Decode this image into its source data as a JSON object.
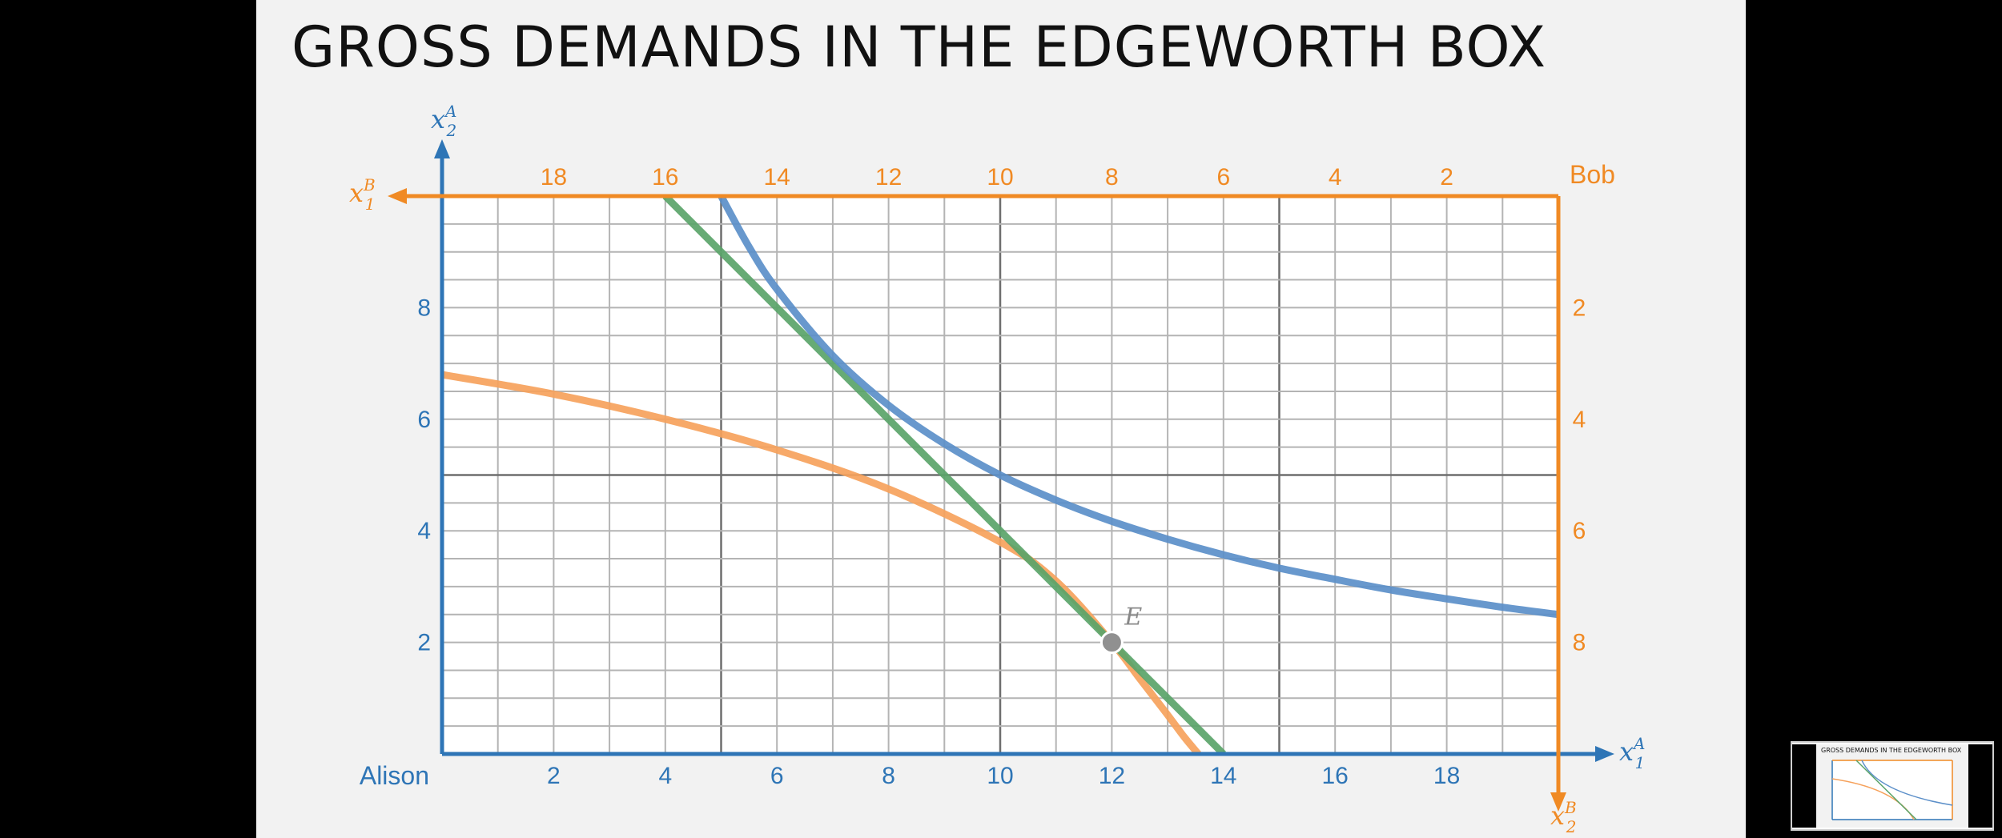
{
  "slide": {
    "title": "GROSS DEMANDS IN THE EDGEWORTH BOX"
  },
  "colors": {
    "alison_axis": "#2e75b6",
    "bob_axis": "#f08a24",
    "indifference_alison": "#5b8fc9",
    "indifference_bob": "#f6a25c",
    "budget_line": "#5aa469",
    "endowment_point": "#909090"
  },
  "chart_data": {
    "type": "line",
    "origins": {
      "alison": "Alison",
      "bob": "Bob"
    },
    "axes": {
      "alison_x": {
        "label_base": "x",
        "label_sub": "1",
        "label_sup": "A",
        "range": [
          0,
          20
        ],
        "ticks": [
          2,
          4,
          6,
          8,
          10,
          12,
          14,
          16,
          18
        ]
      },
      "alison_y": {
        "label_base": "x",
        "label_sub": "2",
        "label_sup": "A",
        "range": [
          0,
          10
        ],
        "ticks": [
          2,
          4,
          6,
          8
        ]
      },
      "bob_x": {
        "label_base": "x",
        "label_sub": "1",
        "label_sup": "B",
        "range": [
          0,
          20
        ],
        "ticks": [
          18,
          16,
          14,
          12,
          10,
          8,
          6,
          4,
          2
        ],
        "direction": "reversed"
      },
      "bob_y": {
        "label_base": "x",
        "label_sub": "2",
        "label_sup": "B",
        "range": [
          0,
          10
        ],
        "ticks": [
          2,
          4,
          6,
          8
        ],
        "direction": "reversed"
      }
    },
    "grid": {
      "minor_step": 1,
      "major_step": 5
    },
    "endowment": {
      "label": "E",
      "x": 12,
      "y": 2
    },
    "series": [
      {
        "key": "alison_indifference",
        "points": [
          [
            5,
            10
          ],
          [
            5.5,
            9.09
          ],
          [
            6,
            8.33
          ],
          [
            7,
            7.14
          ],
          [
            8,
            6.25
          ],
          [
            9,
            5.56
          ],
          [
            10,
            5
          ],
          [
            11,
            4.55
          ],
          [
            12,
            4.17
          ],
          [
            13,
            3.85
          ],
          [
            14,
            3.57
          ],
          [
            15,
            3.33
          ],
          [
            16,
            3.13
          ],
          [
            17,
            2.94
          ],
          [
            18,
            2.78
          ],
          [
            19,
            2.63
          ],
          [
            20,
            2.5
          ]
        ]
      },
      {
        "key": "bob_indifference",
        "points": [
          [
            0,
            6.8
          ],
          [
            2,
            6.45
          ],
          [
            4,
            6.0
          ],
          [
            6,
            5.45
          ],
          [
            8,
            4.75
          ],
          [
            10,
            3.8
          ],
          [
            11,
            3.1
          ],
          [
            12,
            2.0
          ],
          [
            12.5,
            1.35
          ],
          [
            13,
            0.7
          ],
          [
            13.3,
            0.3
          ],
          [
            13.55,
            0
          ]
        ]
      },
      {
        "key": "budget_line",
        "points": [
          [
            4,
            10
          ],
          [
            14,
            0
          ]
        ]
      }
    ]
  }
}
